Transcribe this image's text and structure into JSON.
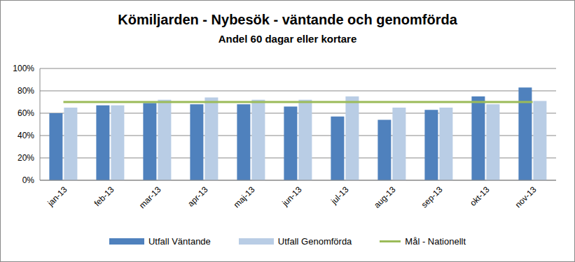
{
  "chart_data": {
    "type": "bar",
    "title": "Kömiljarden - Nybesök - väntande och genomförda",
    "subtitle": "Andel 60 dagar eller kortare",
    "categories": [
      "jan-13",
      "feb-13",
      "mar-13",
      "apr-13",
      "maj-13",
      "jun-13",
      "jul-13",
      "aug-13",
      "sep-13",
      "okt-13",
      "nov-13"
    ],
    "series": [
      {
        "name": "Utfall Väntande",
        "type": "bar",
        "color": "#4f81bd",
        "values": [
          60,
          67,
          69,
          68,
          68,
          66,
          57,
          54,
          63,
          75,
          83
        ]
      },
      {
        "name": "Utfall Genomförda",
        "type": "bar",
        "color": "#b9cde5",
        "values": [
          65,
          67,
          72,
          74,
          72,
          72,
          75,
          65,
          65,
          68,
          71
        ]
      },
      {
        "name": "Mål - Nationellt",
        "type": "line",
        "color": "#9bbb59",
        "values": [
          70,
          70,
          70,
          70,
          70,
          70,
          70,
          70,
          70,
          70,
          70
        ]
      }
    ],
    "ylim": [
      0,
      100
    ],
    "yticks": [
      {
        "value": 0,
        "label": "0%"
      },
      {
        "value": 20,
        "label": "20%"
      },
      {
        "value": 40,
        "label": "40%"
      },
      {
        "value": 60,
        "label": "60%"
      },
      {
        "value": 80,
        "label": "80%"
      },
      {
        "value": 100,
        "label": "100%"
      }
    ],
    "grid": true
  }
}
